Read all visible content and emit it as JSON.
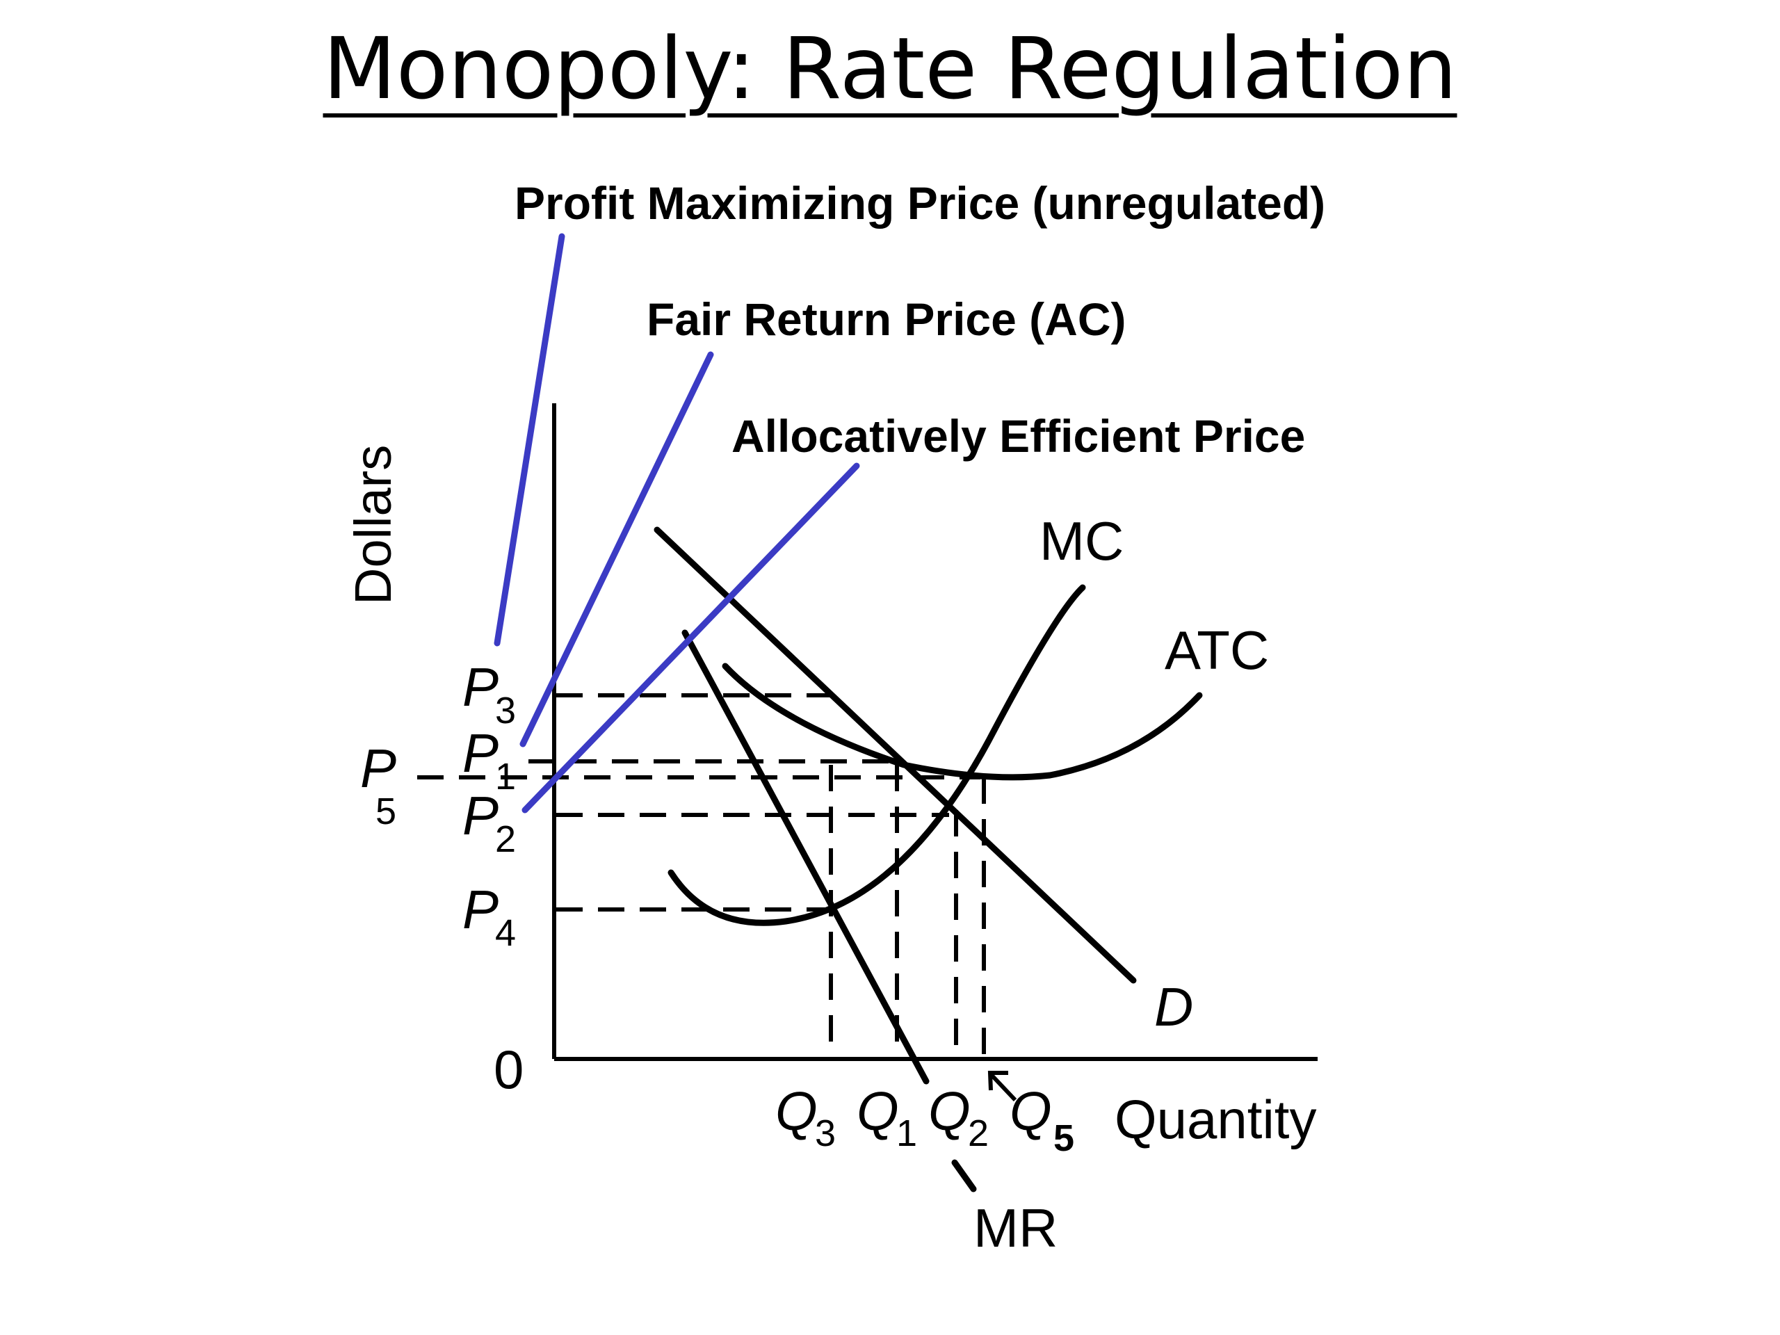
{
  "title": "Monopoly: Rate Regulation",
  "annotations": {
    "profit_max": "Profit Maximizing Price (unregulated)",
    "fair_return": "Fair Return Price (AC)",
    "alloc_eff": "Allocatively Efficient Price"
  },
  "axes": {
    "y_label": "Dollars",
    "x_label": "Quantity",
    "origin": "0"
  },
  "curves": {
    "mc": "MC",
    "atc": "ATC",
    "demand": "D",
    "mr": "MR"
  },
  "prices": {
    "p3": {
      "main": "P",
      "sub": "3"
    },
    "p1": {
      "main": "P",
      "sub": "1"
    },
    "p5": {
      "main": "P",
      "sub": "5"
    },
    "p2": {
      "main": "P",
      "sub": "2"
    },
    "p4": {
      "main": "P",
      "sub": "4"
    }
  },
  "quantities": {
    "q3": {
      "main": "Q",
      "sub": "3"
    },
    "q1": {
      "main": "Q",
      "sub": "1"
    },
    "q2": {
      "main": "Q",
      "sub": "2"
    },
    "q5": {
      "main": "Q",
      "sub": "5"
    }
  },
  "colors": {
    "pointer": "#3b3bc4",
    "curve": "#000000"
  }
}
